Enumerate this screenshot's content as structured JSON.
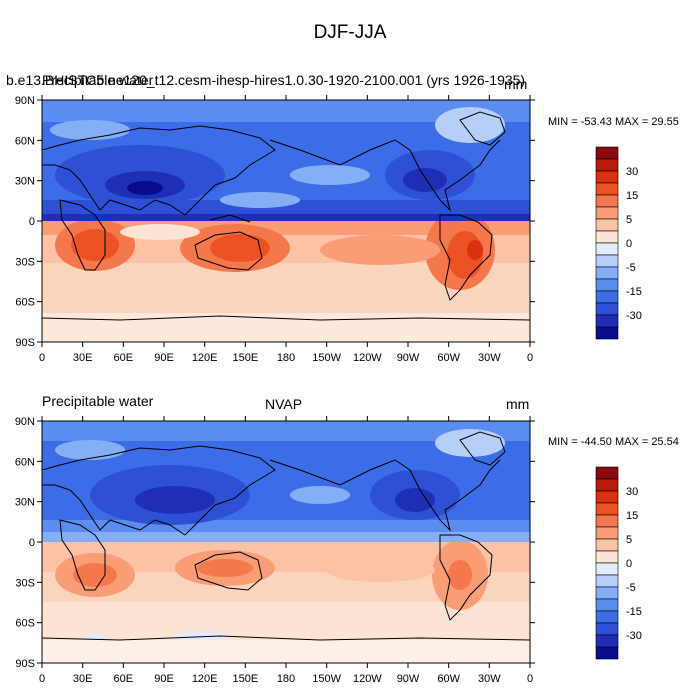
{
  "figure_title": "DJF-JJA",
  "colorbar_colors": [
    "#0a0a8c",
    "#1f2fb4",
    "#2e50d4",
    "#3d6de6",
    "#5b8cf0",
    "#86aef5",
    "#b7cff8",
    "#e2ecfc",
    "#fde3d3",
    "#fbc2a6",
    "#f99d76",
    "#f5784c",
    "#ec5224",
    "#d93210",
    "#b81b0c",
    "#8a0a0a"
  ],
  "colorbar_labels": [
    "30",
    "15",
    "5",
    "0",
    "-5",
    "-15",
    "-30"
  ],
  "x_ticks": [
    "0",
    "30E",
    "60E",
    "90E",
    "120E",
    "150E",
    "180",
    "150W",
    "120W",
    "90W",
    "60W",
    "30W",
    "0"
  ],
  "y_ticks": [
    "90N",
    "60N",
    "30N",
    "0",
    "30S",
    "60S",
    "90S"
  ],
  "panels": [
    {
      "left_label": "Precipitable water",
      "left_label_overlay": "b.e13.BHISTC5.ne120_t12.cesm-ihesp-hires1.0.30-1920-2100.001 (yrs 1926-1935)",
      "center_label": "",
      "units": "mm",
      "stats_text": "MIN = -53.43 MAX =  29.55",
      "min": -53.43,
      "max": 29.55
    },
    {
      "left_label": "Precipitable water",
      "left_label_overlay": "",
      "center_label": "NVAP",
      "units": "mm",
      "stats_text": "MIN = -44.50 MAX =  25.54",
      "min": -44.5,
      "max": 25.54
    }
  ]
}
